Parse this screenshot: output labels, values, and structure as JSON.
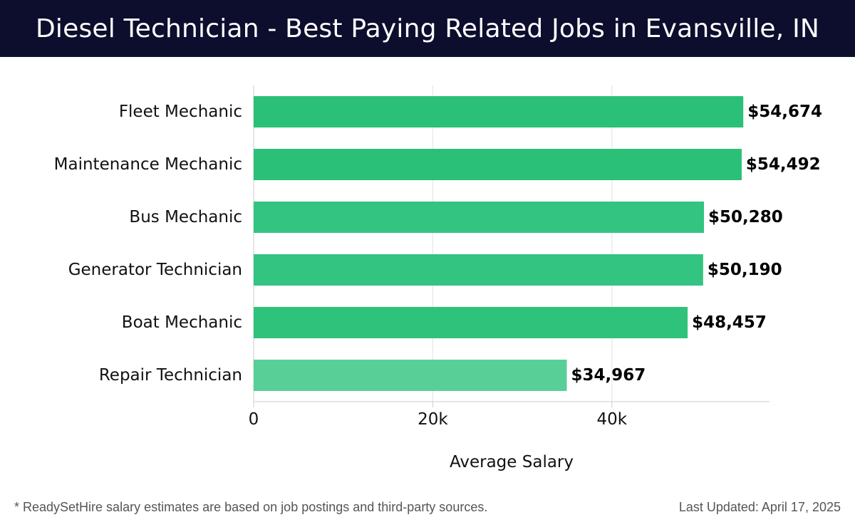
{
  "header": {
    "title": "Diesel Technician - Best Paying Related Jobs in Evansville, IN"
  },
  "chart_data": {
    "type": "bar",
    "orientation": "horizontal",
    "categories": [
      "Fleet Mechanic",
      "Maintenance Mechanic",
      "Bus Mechanic",
      "Generator Technician",
      "Boat Mechanic",
      "Repair Technician"
    ],
    "values": [
      54674,
      54492,
      50280,
      50190,
      48457,
      34967
    ],
    "value_labels": [
      "$54,674",
      "$54,492",
      "$50,280",
      "$50,190",
      "$48,457",
      "$34,967"
    ],
    "bar_colors": [
      "#2ac077",
      "#2ac077",
      "#32c480",
      "#32c480",
      "#2fc27b",
      "#58cf97"
    ],
    "xlabel": "Average Salary",
    "ylabel": "",
    "xlim": [
      0,
      57600
    ],
    "xticks": [
      0,
      20000,
      40000
    ],
    "xtick_labels": [
      "0",
      "20k",
      "40k"
    ],
    "grid": true
  },
  "footer": {
    "note": "* ReadySetHire salary estimates are based on job postings and third-party sources.",
    "updated": "Last Updated: April 17, 2025"
  },
  "colors": {
    "header_bg": "#0d0d2e",
    "grid": "#e3e3e3",
    "axis": "#cccccc"
  }
}
